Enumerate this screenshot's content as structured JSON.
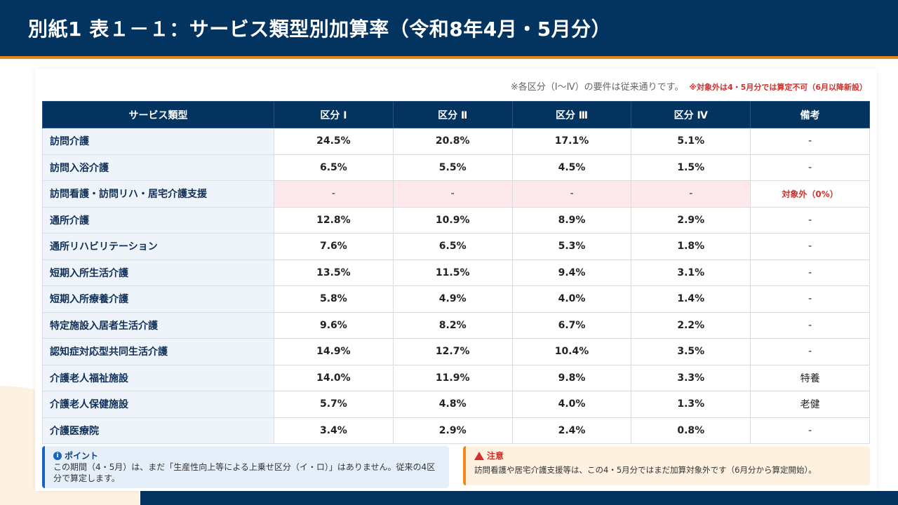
{
  "title": "別紙1 表１－１：サービス類型別加算率（令和8年4月・5月分）",
  "note": "※各区分（Ⅰ～Ⅳ）の要件は従来通りです。",
  "note_red": "※対象外は4・5月分では算定不可（6月以降新設）",
  "headers": [
    "サービス類型",
    "区分 Ⅰ",
    "区分 Ⅱ",
    "区分 Ⅲ",
    "区分 Ⅳ",
    "備考"
  ],
  "rows": [
    [
      "訪問介護",
      "24.5%",
      "20.8%",
      "17.1%",
      "5.1%",
      "-"
    ],
    [
      "訪問入浴介護",
      "6.5%",
      "5.5%",
      "4.5%",
      "1.5%",
      "-"
    ],
    [
      "訪問看護・訪問リハ・居宅介護支援",
      "-",
      "-",
      "-",
      "-",
      "対象外（0%）"
    ],
    [
      "通所介護",
      "12.8%",
      "10.9%",
      "8.9%",
      "2.9%",
      "-"
    ],
    [
      "通所リハビリテーション",
      "7.6%",
      "6.5%",
      "5.3%",
      "1.8%",
      "-"
    ],
    [
      "短期入所生活介護",
      "13.5%",
      "11.5%",
      "9.4%",
      "3.1%",
      "-"
    ],
    [
      "短期入所療養介護",
      "5.8%",
      "4.9%",
      "4.0%",
      "1.4%",
      "-"
    ],
    [
      "特定施設入居者生活介護",
      "9.6%",
      "8.2%",
      "6.7%",
      "2.2%",
      "-"
    ],
    [
      "認知症対応型共同生活介護",
      "14.9%",
      "12.7%",
      "10.4%",
      "3.5%",
      "-"
    ],
    [
      "介護老人福祉施設",
      "14.0%",
      "11.9%",
      "9.8%",
      "3.3%",
      "特養"
    ],
    [
      "介護老人保健施設",
      "5.7%",
      "4.8%",
      "4.0%",
      "1.3%",
      "老健"
    ],
    [
      "介護医療院",
      "3.4%",
      "2.9%",
      "2.4%",
      "0.8%",
      "-"
    ]
  ],
  "point": {
    "title": "ポイント",
    "icon": "info-icon",
    "body": "この期間（4・5月）は、まだ「生産性向上等による上乗せ区分（イ・ロ）」はありません。従来の4区分で算定します。"
  },
  "warning": {
    "title": "注意",
    "icon": "warning-icon",
    "body": "訪問看護や居宅介護支援等は、この4・5月分ではまだ加算対象外です（6月分から算定開始）。"
  },
  "colors": {
    "navy": "#03335f",
    "orange": "#e8851a",
    "red": "#d3302b"
  }
}
